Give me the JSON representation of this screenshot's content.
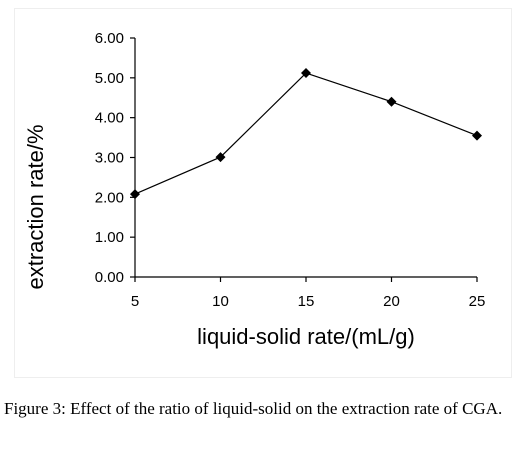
{
  "chart_data": {
    "type": "line",
    "x": [
      5,
      10,
      15,
      20,
      25
    ],
    "y": [
      2.08,
      3.01,
      5.12,
      4.4,
      3.55
    ],
    "xlabel": "liquid-solid rate/(mL/g)",
    "ylabel": "extraction rate/%",
    "xlim": [
      5,
      25
    ],
    "ylim": [
      0,
      6
    ],
    "xticks": [
      "5",
      "10",
      "15",
      "20",
      "25"
    ],
    "yticks": [
      "0.00",
      "1.00",
      "2.00",
      "3.00",
      "4.00",
      "5.00",
      "6.00"
    ],
    "grid": false,
    "legend": "none",
    "marker": "diamond",
    "line_color": "#000000"
  },
  "caption": {
    "label": "Figure 3:",
    "text": " Effect of the ratio of liquid-solid on the extraction rate of CGA."
  }
}
